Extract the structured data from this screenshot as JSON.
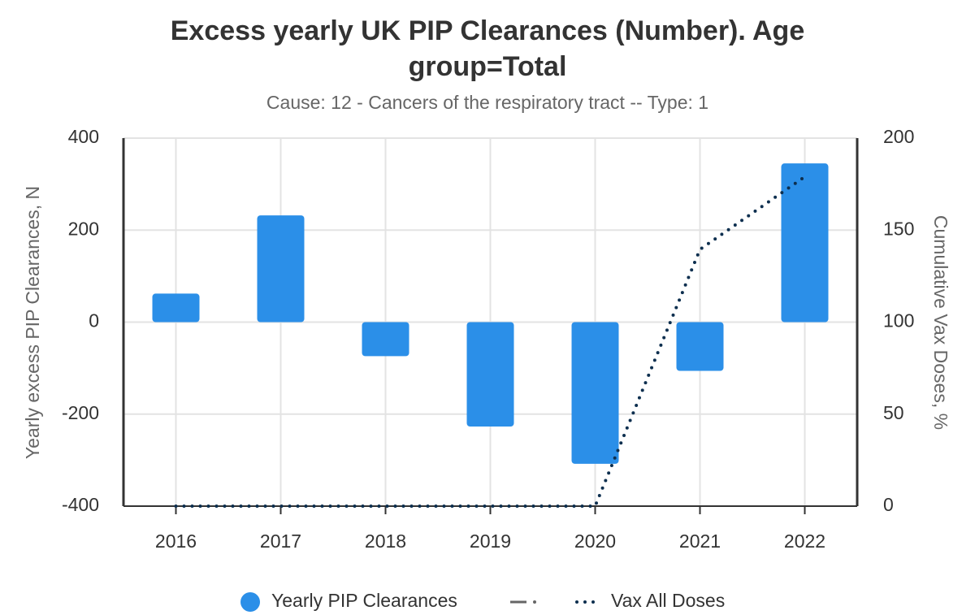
{
  "chart_data": {
    "type": "bar_line",
    "title": "Excess yearly UK PIP Clearances (Number). Age group=Total",
    "subtitle": "Cause: 12 - Cancers of the respiratory tract -- Type: 1",
    "y_label": "Yearly excess PIP Clearances, N",
    "y2_label": "Cumulative Vax Doses, %",
    "categories": [
      "2016",
      "2017",
      "2018",
      "2019",
      "2020",
      "2021",
      "2022"
    ],
    "series": [
      {
        "name": "Yearly PIP Clearances",
        "type": "bar",
        "color": "#2b8fe8",
        "axis": "y",
        "values": [
          62,
          232,
          -74,
          -227,
          -308,
          -106,
          345
        ]
      },
      {
        "name": "Vax All Doses",
        "type": "line",
        "color": "#0d2f4f",
        "axis": "y2",
        "style": "dotted",
        "values": [
          0,
          0,
          0,
          0,
          0,
          139.5,
          179
        ]
      }
    ],
    "ylim": [
      -400,
      400
    ],
    "yticks": [
      -400,
      -200,
      0,
      200,
      400
    ],
    "y2lim": [
      0,
      200
    ],
    "y2ticks": [
      0,
      50,
      100,
      150,
      200
    ],
    "grid": true,
    "legend": "bottom"
  }
}
